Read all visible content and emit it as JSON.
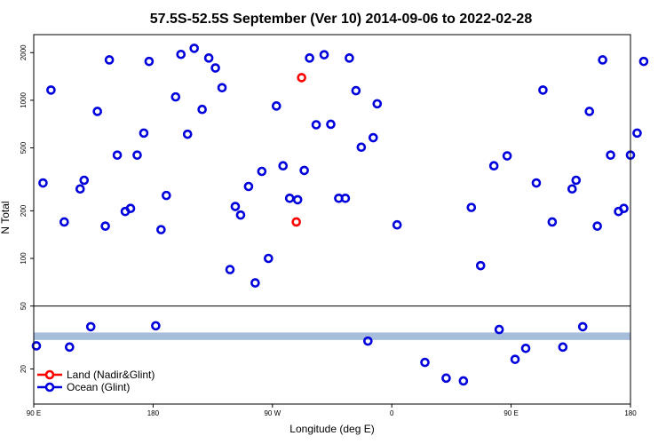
{
  "chart_data": {
    "type": "scatter",
    "title": "57.5S-52.5S September (Ver 10)   2014-09-06 to 2022-02-28",
    "xlabel": "Longitude (deg E)",
    "ylabel": "N Total",
    "x_scale": "linear",
    "y_scale": "log",
    "xlim": [
      90,
      540
    ],
    "ylim": [
      12,
      2600
    ],
    "x_ticks": [
      {
        "value": 90,
        "label": "90 E"
      },
      {
        "value": 180,
        "label": "180"
      },
      {
        "value": 270,
        "label": "90 W"
      },
      {
        "value": 360,
        "label": "0"
      },
      {
        "value": 450,
        "label": "90 E"
      },
      {
        "value": 540,
        "label": "180"
      }
    ],
    "y_ticks": [
      {
        "value": 20,
        "label": "20"
      },
      {
        "value": 50,
        "label": "50"
      },
      {
        "value": 100,
        "label": "100"
      },
      {
        "value": 200,
        "label": "200"
      },
      {
        "value": 500,
        "label": "500"
      },
      {
        "value": 1000,
        "label": "1000"
      },
      {
        "value": 2000,
        "label": "2000"
      }
    ],
    "threshold_line": 50,
    "band": {
      "y_low": 30.5,
      "y_high": 34.0,
      "color": "#a6bddb"
    },
    "grid": false,
    "legend_position": "bottom-left",
    "series": [
      {
        "name": "Land (Nadir&Glint)",
        "color": "#ff0000",
        "points": [
          [
            292,
            1390
          ],
          [
            288,
            170
          ]
        ]
      },
      {
        "name": "Ocean (Glint)",
        "color": "#0000dd",
        "points": [
          [
            92,
            28
          ],
          [
            97,
            300
          ],
          [
            103,
            1160
          ],
          [
            113,
            170
          ],
          [
            117,
            27.5
          ],
          [
            125,
            275
          ],
          [
            128,
            312
          ],
          [
            133,
            37
          ],
          [
            138,
            850
          ],
          [
            144,
            160
          ],
          [
            147,
            1800
          ],
          [
            153,
            450
          ],
          [
            159,
            198
          ],
          [
            163,
            207
          ],
          [
            168,
            450
          ],
          [
            173,
            620
          ],
          [
            177,
            1760
          ],
          [
            182,
            37.5
          ],
          [
            186,
            152
          ],
          [
            190,
            250
          ],
          [
            197,
            1050
          ],
          [
            201,
            1950
          ],
          [
            206,
            610
          ],
          [
            211,
            2130
          ],
          [
            217,
            875
          ],
          [
            222,
            1850
          ],
          [
            227,
            1600
          ],
          [
            232,
            1200
          ],
          [
            238,
            85
          ],
          [
            242,
            213
          ],
          [
            246,
            188
          ],
          [
            252,
            285
          ],
          [
            257,
            70
          ],
          [
            262,
            355
          ],
          [
            267,
            100
          ],
          [
            273,
            920
          ],
          [
            278,
            385
          ],
          [
            283,
            240
          ],
          [
            289,
            235
          ],
          [
            294,
            360
          ],
          [
            298,
            1850
          ],
          [
            303,
            700
          ],
          [
            309,
            1940
          ],
          [
            314,
            705
          ],
          [
            320,
            240
          ],
          [
            325,
            240
          ],
          [
            328,
            1850
          ],
          [
            333,
            1150
          ],
          [
            337,
            505
          ],
          [
            342,
            30
          ],
          [
            346,
            580
          ],
          [
            349,
            950
          ],
          [
            364,
            163
          ],
          [
            385,
            22
          ],
          [
            401,
            17.5
          ],
          [
            414,
            16.8
          ],
          [
            420,
            210
          ],
          [
            427,
            90
          ],
          [
            437,
            385
          ],
          [
            441,
            35.5
          ],
          [
            447,
            445
          ],
          [
            453,
            23
          ],
          [
            461,
            27
          ],
          [
            469,
            300
          ],
          [
            474,
            1160
          ],
          [
            481,
            170
          ],
          [
            489,
            27.5
          ],
          [
            496,
            275
          ],
          [
            499,
            312
          ],
          [
            504,
            37
          ],
          [
            509,
            850
          ],
          [
            515,
            160
          ],
          [
            519,
            1800
          ],
          [
            525,
            450
          ],
          [
            531,
            198
          ],
          [
            535,
            207
          ],
          [
            540,
            450
          ],
          [
            545,
            620
          ],
          [
            550,
            1760
          ]
        ]
      }
    ]
  }
}
